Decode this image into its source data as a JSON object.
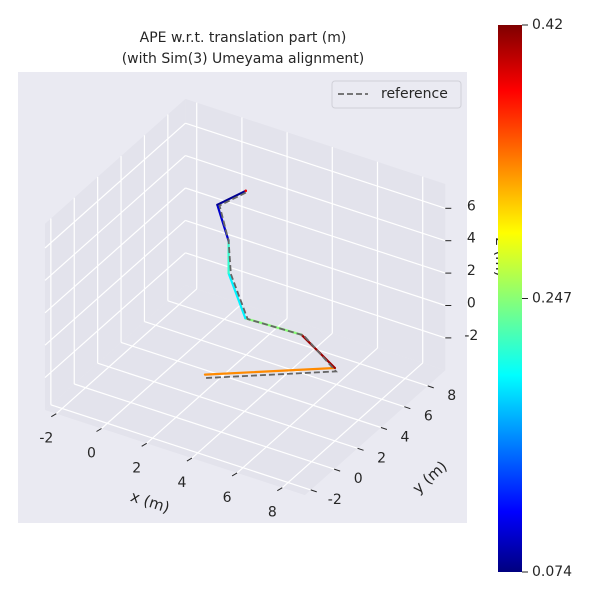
{
  "chart_data": {
    "type": "line3d",
    "title": "APE w.r.t. translation part (m)",
    "subtitle": "(with Sim(3) Umeyama alignment)",
    "xlabel": "x (m)",
    "ylabel": "y (m)",
    "zlabel": "z (m)",
    "xlim": [
      -2.5,
      9
    ],
    "ylim": [
      -2.5,
      9.5
    ],
    "zlim": [
      -4,
      7.5
    ],
    "xticks": [
      -2,
      0,
      2,
      4,
      6,
      8
    ],
    "yticks": [
      -2,
      0,
      2,
      4,
      6,
      8
    ],
    "zticks": [
      -2,
      0,
      2,
      4,
      6
    ],
    "grid": true,
    "legend_loc": "upper right",
    "colormap": "jet",
    "clim": [
      0.074,
      0.42
    ],
    "cticks": [
      0.074,
      0.247,
      0.42
    ],
    "series": [
      {
        "name": "reference",
        "color": "#666666",
        "dash": true,
        "x": [
          3.9,
          8.1,
          6.1,
          3.1,
          2.1,
          2.0,
          1.6,
          2.6
        ],
        "y": [
          -1.1,
          1.9,
          3.0,
          4.0,
          4.5,
          4.5,
          4.5,
          5.0
        ],
        "z": [
          0.0,
          0.4,
          1.0,
          0.0,
          2.0,
          4.0,
          6.0,
          7.0
        ]
      },
      {
        "x": [
          3.8,
          8.0,
          6.0,
          3.0,
          2.0,
          2.0,
          1.5,
          2.5
        ],
        "y": [
          -1.0,
          2.0,
          3.0,
          4.0,
          4.5,
          4.5,
          4.5,
          5.0
        ],
        "z": [
          0.1,
          0.5,
          1.0,
          0.0,
          2.0,
          4.0,
          6.0,
          7.0
        ],
        "error": [
          0.33,
          0.41,
          0.25,
          0.2,
          0.22,
          0.1,
          0.08,
          0.38
        ]
      }
    ]
  }
}
